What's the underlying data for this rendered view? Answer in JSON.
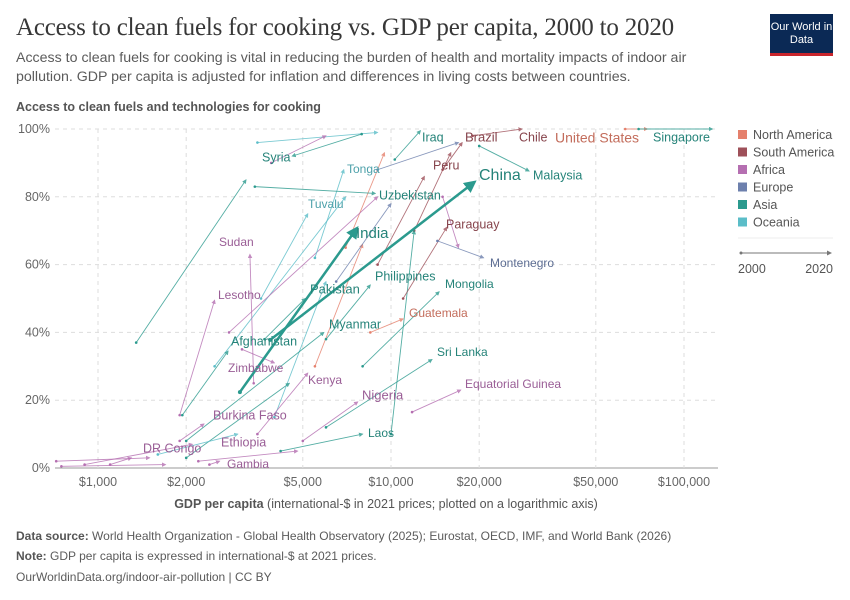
{
  "header": {
    "title": "Access to clean fuels for cooking vs. GDP per capita, 2000 to 2020",
    "subtitle": "Access to clean fuels for cooking is vital in reducing the burden of health and mortality impacts of indoor air pollution. GDP per capita is adjusted for inflation and differences in living costs between countries.",
    "logo": "Our World in Data"
  },
  "footer": {
    "source_label": "Data source:",
    "source": "World Health Organization - Global Health Observatory (2025); Eurostat, OECD, IMF, and World Bank (2026)",
    "note_label": "Note:",
    "note": "GDP per capita is expressed in international-$ at 2021 prices.",
    "url": "OurWorldinData.org/indoor-air-pollution | CC BY"
  },
  "chart_data": {
    "type": "scatter",
    "title": "Access to clean fuels for cooking vs. GDP per capita, 2000 to 2020",
    "ylabel": "Access to clean fuels and technologies for cooking",
    "xlabel_bold": "GDP per capita",
    "xlabel_rest": "(international-$ in 2021 prices; plotted on a logarithmic axis)",
    "x_scale": "log",
    "xlim": [
      713,
      130000
    ],
    "ylim": [
      0,
      100
    ],
    "grid": true,
    "x_ticks": [
      {
        "v": 1000,
        "label": "$1,000"
      },
      {
        "v": 2000,
        "label": "$2,000"
      },
      {
        "v": 5000,
        "label": "$5,000"
      },
      {
        "v": 10000,
        "label": "$10,000"
      },
      {
        "v": 20000,
        "label": "$20,000"
      },
      {
        "v": 50000,
        "label": "$50,000"
      },
      {
        "v": 100000,
        "label": "$100,000"
      }
    ],
    "y_ticks": [
      {
        "v": 0,
        "label": "0%"
      },
      {
        "v": 20,
        "label": "20%"
      },
      {
        "v": 40,
        "label": "40%"
      },
      {
        "v": 60,
        "label": "60%"
      },
      {
        "v": 80,
        "label": "80%"
      },
      {
        "v": 100,
        "label": "100%"
      }
    ],
    "legend_position": "right",
    "legend": [
      {
        "name": "North America",
        "color": "#e5806c"
      },
      {
        "name": "South America",
        "color": "#9e5059"
      },
      {
        "name": "Africa",
        "color": "#b56fb1"
      },
      {
        "name": "Europe",
        "color": "#6d80ad"
      },
      {
        "name": "Asia",
        "color": "#2b9a8e"
      },
      {
        "name": "Oceania",
        "color": "#5bbdc8"
      }
    ],
    "timeline": {
      "start": "2000",
      "end": "2020"
    },
    "series": [
      {
        "name": "China",
        "continent": "Asia",
        "start": [
          3870,
          37.8
        ],
        "end": [
          19300,
          84.4
        ],
        "highlight": true
      },
      {
        "name": "India",
        "continent": "Asia",
        "start": [
          3050,
          22.4
        ],
        "end": [
          7660,
          70.8
        ],
        "highlight": true
      },
      {
        "name": "Pakistan",
        "continent": "Asia",
        "start": [
          3700,
          38
        ],
        "end": [
          5100,
          50
        ]
      },
      {
        "name": "Afghanistan",
        "continent": "Asia",
        "start": [
          1940,
          15.6
        ],
        "end": [
          2780,
          34.5
        ]
      },
      {
        "name": "Syria",
        "continent": "Asia",
        "start": [
          7940,
          98.5
        ],
        "end": [
          4600,
          92
        ]
      },
      {
        "name": "Iraq",
        "continent": "Asia",
        "start": [
          10300,
          91
        ],
        "end": [
          12600,
          99.5
        ]
      },
      {
        "name": "Brazil",
        "continent": "South America",
        "start": [
          15000,
          88
        ],
        "end": [
          17500,
          96
        ]
      },
      {
        "name": "Chile",
        "continent": "South America",
        "start": [
          19000,
          98
        ],
        "end": [
          28000,
          100
        ]
      },
      {
        "name": "United States",
        "continent": "North America",
        "start": [
          63000,
          100
        ],
        "end": [
          75000,
          100
        ]
      },
      {
        "name": "Singapore",
        "continent": "Asia",
        "start": [
          70000,
          100
        ],
        "end": [
          125000,
          100
        ]
      },
      {
        "name": "Peru",
        "continent": "South America",
        "start": [
          9000,
          60
        ],
        "end": [
          13000,
          86
        ]
      },
      {
        "name": "Malaysia",
        "continent": "Asia",
        "start": [
          20000,
          95
        ],
        "end": [
          29600,
          87.6
        ]
      },
      {
        "name": "Tonga",
        "continent": "Oceania",
        "start": [
          5500,
          62
        ],
        "end": [
          6900,
          88
        ]
      },
      {
        "name": "Tuvalu",
        "continent": "Oceania",
        "start": [
          3600,
          50
        ],
        "end": [
          5200,
          75
        ]
      },
      {
        "name": "Uzbekistan",
        "continent": "Asia",
        "start": [
          3430,
          83
        ],
        "end": [
          8840,
          81
        ]
      },
      {
        "name": "Sudan",
        "continent": "Africa",
        "start": [
          3400,
          25
        ],
        "end": [
          3300,
          63
        ]
      },
      {
        "name": "Lesotho",
        "continent": "Africa",
        "start": [
          1900,
          15.6
        ],
        "end": [
          2500,
          49.5
        ]
      },
      {
        "name": "Paraguay",
        "continent": "South America",
        "start": [
          11000,
          50
        ],
        "end": [
          15500,
          71
        ]
      },
      {
        "name": "Montenegro",
        "continent": "Europe",
        "start": [
          14400,
          67
        ],
        "end": [
          20700,
          62
        ]
      },
      {
        "name": "Philippines",
        "continent": "Asia",
        "start": [
          6000,
          38
        ],
        "end": [
          8500,
          54
        ]
      },
      {
        "name": "Mongolia",
        "continent": "Asia",
        "start": [
          8000,
          30
        ],
        "end": [
          14600,
          52
        ]
      },
      {
        "name": "Guatemala",
        "continent": "North America",
        "start": [
          8500,
          40
        ],
        "end": [
          11000,
          44
        ]
      },
      {
        "name": "Myanmar",
        "continent": "Asia",
        "start": [
          2000,
          8
        ],
        "end": [
          5900,
          40
        ]
      },
      {
        "name": "Zimbabwe",
        "continent": "Africa",
        "start": [
          3100,
          35
        ],
        "end": [
          4000,
          31
        ]
      },
      {
        "name": "Kenya",
        "continent": "Africa",
        "start": [
          3500,
          10
        ],
        "end": [
          5200,
          28
        ]
      },
      {
        "name": "Sri Lanka",
        "continent": "Asia",
        "start": [
          6000,
          12
        ],
        "end": [
          13800,
          32
        ]
      },
      {
        "name": "Equatorial Guinea",
        "continent": "Africa",
        "start": [
          11800,
          16.5
        ],
        "end": [
          17300,
          23
        ]
      },
      {
        "name": "Nigeria",
        "continent": "Africa",
        "start": [
          5000,
          8
        ],
        "end": [
          7700,
          19.5
        ]
      },
      {
        "name": "Laos",
        "continent": "Asia",
        "start": [
          4200,
          5
        ],
        "end": [
          8000,
          10
        ]
      },
      {
        "name": "Burkina Faso",
        "continent": "Africa",
        "start": [
          1900,
          8
        ],
        "end": [
          2300,
          13
        ]
      },
      {
        "name": "Ethiopia",
        "continent": "Africa",
        "start": [
          900,
          1
        ],
        "end": [
          2100,
          7
        ]
      },
      {
        "name": "DR Congo",
        "continent": "Africa",
        "start": [
          1100,
          1
        ],
        "end": [
          1300,
          3
        ]
      },
      {
        "name": "Gambia",
        "continent": "Africa",
        "start": [
          2400,
          1
        ],
        "end": [
          2600,
          2
        ]
      },
      {
        "name": "",
        "continent": "Asia",
        "start": [
          1350,
          37
        ],
        "end": [
          3200,
          85
        ]
      },
      {
        "name": "",
        "continent": "Oceania",
        "start": [
          3500,
          96
        ],
        "end": [
          9000,
          99
        ]
      },
      {
        "name": "",
        "continent": "Africa",
        "start": [
          3900,
          90
        ],
        "end": [
          6000,
          98
        ]
      },
      {
        "name": "",
        "continent": "North America",
        "start": [
          7000,
          65
        ],
        "end": [
          9500,
          93
        ]
      },
      {
        "name": "",
        "continent": "South America",
        "start": [
          12000,
          70
        ],
        "end": [
          16000,
          93
        ]
      },
      {
        "name": "",
        "continent": "Europe",
        "start": [
          9000,
          88
        ],
        "end": [
          17000,
          96
        ]
      },
      {
        "name": "",
        "continent": "Oceania",
        "start": [
          2500,
          30
        ],
        "end": [
          7000,
          80
        ]
      },
      {
        "name": "",
        "continent": "Africa",
        "start": [
          2800,
          40
        ],
        "end": [
          9000,
          80
        ]
      },
      {
        "name": "",
        "continent": "Asia",
        "start": [
          10000,
          10
        ],
        "end": [
          12000,
          70
        ]
      },
      {
        "name": "",
        "continent": "Oceania",
        "start": [
          4000,
          15
        ],
        "end": [
          6000,
          55
        ]
      },
      {
        "name": "",
        "continent": "Africa",
        "start": [
          720,
          2
        ],
        "end": [
          1500,
          3
        ]
      },
      {
        "name": "",
        "continent": "Africa",
        "start": [
          750,
          0.5
        ],
        "end": [
          1700,
          1
        ]
      },
      {
        "name": "",
        "continent": "Asia",
        "start": [
          2000,
          3
        ],
        "end": [
          4500,
          25
        ]
      },
      {
        "name": "",
        "continent": "North America",
        "start": [
          5500,
          30
        ],
        "end": [
          8000,
          66
        ]
      },
      {
        "name": "",
        "continent": "Europe",
        "start": [
          6500,
          55
        ],
        "end": [
          10000,
          78
        ]
      },
      {
        "name": "",
        "continent": "Africa",
        "start": [
          15000,
          80
        ],
        "end": [
          17000,
          65
        ]
      },
      {
        "name": "",
        "continent": "Oceania",
        "start": [
          1600,
          4
        ],
        "end": [
          3000,
          10
        ]
      },
      {
        "name": "",
        "continent": "Africa",
        "start": [
          2200,
          2
        ],
        "end": [
          4800,
          5
        ]
      }
    ]
  }
}
